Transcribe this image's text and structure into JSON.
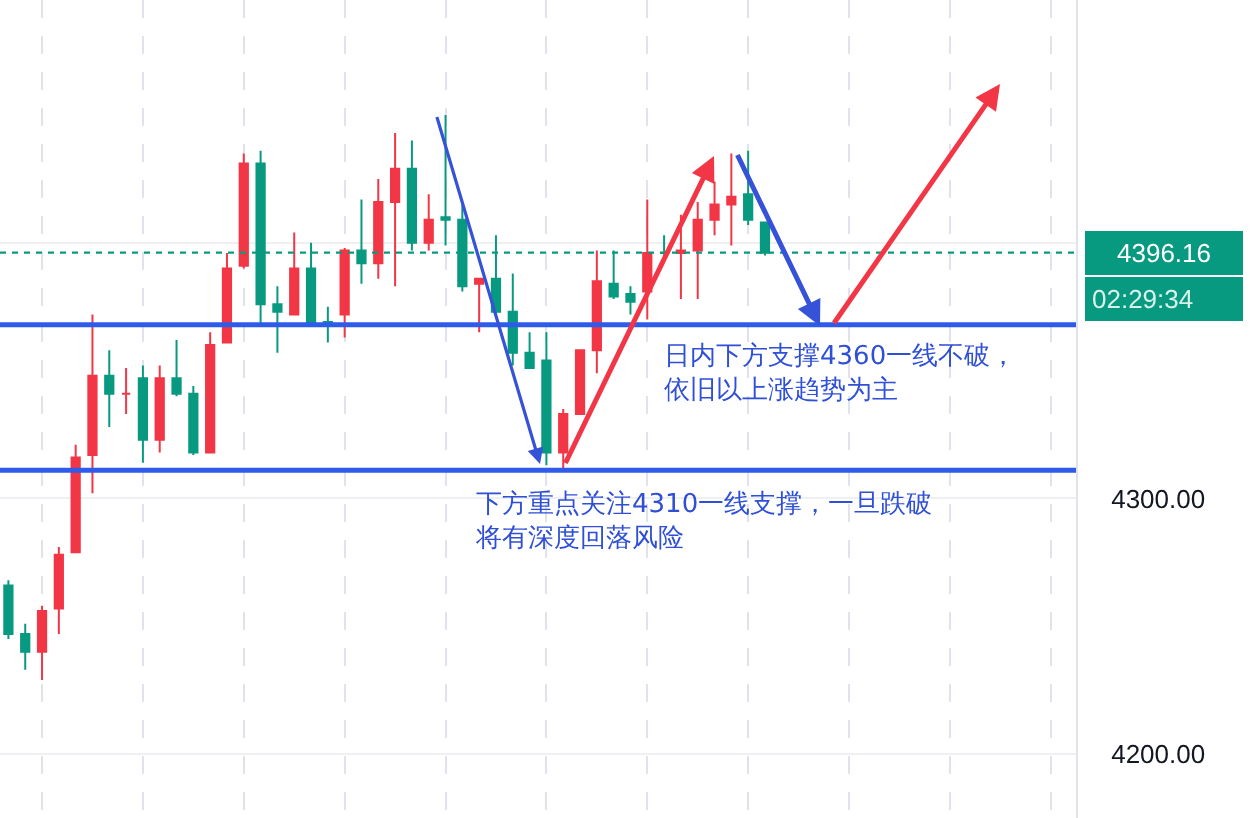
{
  "chart_data": {
    "type": "candlestick",
    "categories": [
      null,
      null,
      null,
      null,
      null,
      null,
      null,
      null,
      null,
      null,
      null,
      null,
      null,
      null,
      null,
      null,
      null,
      null,
      null,
      null,
      null,
      null,
      null,
      null,
      null,
      null,
      null,
      null,
      null,
      null,
      null,
      null,
      null,
      null,
      null,
      null,
      null,
      null,
      null,
      null,
      null,
      null,
      null,
      null,
      null,
      null,
      null,
      null,
      null,
      null,
      null,
      null,
      null,
      null,
      null,
      null,
      null,
      null,
      null,
      null,
      null,
      null,
      null,
      null
    ],
    "ohlc": [
      [
        4266,
        4268,
        4245,
        4247
      ],
      [
        4247,
        4251,
        4233,
        4240
      ],
      [
        4240,
        4258,
        4229,
        4256
      ],
      [
        4257,
        4281,
        4247,
        4278
      ],
      [
        4279,
        4321,
        4279,
        4316
      ],
      [
        4317,
        4372,
        4302,
        4348
      ],
      [
        4348,
        4358,
        4328,
        4341
      ],
      [
        4341,
        4351,
        4333,
        4341
      ],
      [
        4347,
        4352,
        4314,
        4323
      ],
      [
        4323,
        4352,
        4318,
        4347
      ],
      [
        4347,
        4362,
        4340,
        4341
      ],
      [
        4341,
        4344,
        4317,
        4318
      ],
      [
        4318,
        4365,
        4318,
        4360
      ],
      [
        4361,
        4396,
        4361,
        4390
      ],
      [
        4391,
        4435,
        4390,
        4431
      ],
      [
        4431,
        4436,
        4368,
        4376
      ],
      [
        4376,
        4383,
        4357,
        4373
      ],
      [
        4372,
        4404,
        4372,
        4390
      ],
      [
        4390,
        4400,
        4369,
        4369
      ],
      [
        4369,
        4375,
        4361,
        4368
      ],
      [
        4372,
        4398,
        4363,
        4397
      ],
      [
        4397,
        4417,
        4384,
        4392
      ],
      [
        4392,
        4425,
        4386,
        4416
      ],
      [
        4416,
        4443,
        4383,
        4429
      ],
      [
        4429,
        4440,
        4397,
        4400
      ],
      [
        4400,
        4419,
        4397,
        4409
      ],
      [
        4410,
        4450,
        4399,
        4409
      ],
      [
        4409,
        4415,
        4381,
        4383
      ],
      [
        4384,
        4386,
        4365,
        4386
      ],
      [
        4386,
        4403,
        4372,
        4373
      ],
      [
        4373,
        4388,
        4352,
        4357
      ],
      [
        4357,
        4365,
        4351,
        4351
      ],
      [
        4354,
        4365,
        4313,
        4318
      ],
      [
        4318,
        4335,
        4311,
        4333
      ],
      [
        4333,
        4358,
        4333,
        4358
      ],
      [
        4358,
        4397,
        4349,
        4385
      ],
      [
        4384,
        4397,
        4378,
        4379
      ],
      [
        4380,
        4383,
        4372,
        4377
      ],
      [
        4381,
        4417,
        4370,
        4396
      ],
      [
        4396,
        4403,
        4395,
        4396
      ],
      [
        4396,
        4411,
        4378,
        4397
      ],
      [
        4397,
        4416,
        4378,
        4409
      ],
      [
        4409,
        4424,
        4403,
        4415
      ],
      [
        4415,
        4435,
        4399,
        4418
      ],
      [
        4419,
        4436,
        4407,
        4409
      ],
      [
        4408,
        4408,
        4395,
        4396.16
      ],
      null,
      null,
      null,
      null,
      null,
      null,
      null,
      null,
      null,
      null,
      null,
      null,
      null,
      null,
      null,
      null,
      null,
      null
    ],
    "colors": [
      "#089981",
      "#089981",
      "#f23645",
      "#f23645",
      "#f23645",
      "#f23645",
      "#089981",
      "#f23645",
      "#089981",
      "#f23645",
      "#089981",
      "#089981",
      "#f23645",
      "#f23645",
      "#f23645",
      "#089981",
      "#089981",
      "#f23645",
      "#089981",
      "#089981",
      "#f23645",
      "#089981",
      "#f23645",
      "#f23645",
      "#089981",
      "#f23645",
      "#089981",
      "#089981",
      "#f23645",
      "#089981",
      "#089981",
      "#089981",
      "#089981",
      "#f23645",
      "#f23645",
      "#f23645",
      "#089981",
      "#089981",
      "#f23645",
      "#089981",
      "#f23645",
      "#f23645",
      "#f23645",
      "#f23645",
      "#089981",
      "#089981",
      null,
      null,
      null,
      null,
      null,
      null,
      null,
      null,
      null,
      null,
      null,
      null,
      null,
      null,
      null,
      null,
      null,
      null
    ],
    "ylim": [
      4175,
      4495
    ],
    "yticks": [
      {
        "value": 4200,
        "label": "4200.00"
      },
      {
        "value": 4300,
        "label": "4300.00"
      },
      {
        "value": 4400,
        "label": null
      }
    ],
    "tick_labels": "y",
    "grid": true,
    "ref_lines": [
      {
        "axis": "y",
        "value": 4368,
        "color": "#2f5bea"
      },
      {
        "axis": "y",
        "value": 4311,
        "color": "#2f5bea"
      },
      {
        "axis": "y",
        "value": 4396.16,
        "label": "4396.16",
        "color": "#089981",
        "line_style": "dotted"
      }
    ],
    "annotations": [
      "日内下方支撑4360一线不破，依旧以上涨趋势为主",
      "下方重点关注4310一线支撑，一旦跌破将有深度回落风险",
      "02:29:34"
    ]
  }
}
